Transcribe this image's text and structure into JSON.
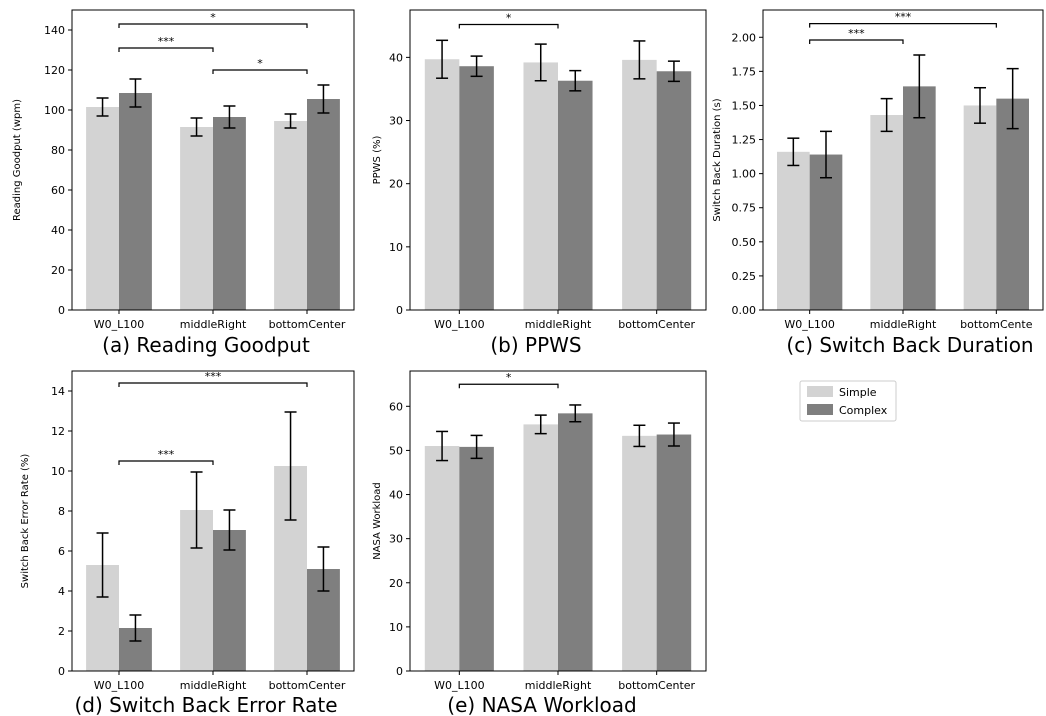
{
  "legend": {
    "items": [
      {
        "label": "Simple",
        "color": "#d3d3d3"
      },
      {
        "label": "Complex",
        "color": "#7f7f7f"
      }
    ]
  },
  "chart_data": [
    {
      "type": "bar",
      "caption": "(a) Reading Goodput",
      "ylabel": "Reading Goodput (wpm)",
      "categories": [
        "W0_L100",
        "middleRight",
        "bottomCenter"
      ],
      "ylim": [
        0,
        150
      ],
      "yticks": [
        0,
        20,
        40,
        60,
        80,
        100,
        120,
        140
      ],
      "series": [
        {
          "name": "Simple",
          "values": [
            101.5,
            91.5,
            94.5
          ],
          "err": [
            4.5,
            4.5,
            3.5
          ]
        },
        {
          "name": "Complex",
          "values": [
            108.5,
            96.5,
            105.5
          ],
          "err": [
            7.0,
            5.5,
            7.0
          ]
        }
      ],
      "significance": [
        {
          "from": 0,
          "to": 1,
          "label": "***",
          "y": 131
        },
        {
          "from": 1,
          "to": 2,
          "label": "*",
          "y": 120
        },
        {
          "from": 0,
          "to": 2,
          "label": "*",
          "y": 143
        }
      ]
    },
    {
      "type": "bar",
      "caption": "(b) PPWS",
      "ylabel": "PPWS (%)",
      "categories": [
        "W0_L100",
        "middleRight",
        "bottomCenter"
      ],
      "ylim": [
        0,
        47.5
      ],
      "yticks": [
        0,
        10,
        20,
        30,
        40
      ],
      "series": [
        {
          "name": "Simple",
          "values": [
            39.7,
            39.2,
            39.6
          ],
          "err": [
            3.0,
            2.9,
            3.0
          ]
        },
        {
          "name": "Complex",
          "values": [
            38.6,
            36.3,
            37.8
          ],
          "err": [
            1.6,
            1.6,
            1.6
          ]
        }
      ],
      "significance": [
        {
          "from": 0,
          "to": 1,
          "label": "*",
          "y": 45.2
        }
      ]
    },
    {
      "type": "bar",
      "caption": "(c) Switch Back Duration",
      "ylabel": "Switch Back Duration (s)",
      "categories": [
        "W0_L100",
        "middleRight",
        "bottomCente"
      ],
      "ylim": [
        0,
        2.2
      ],
      "yticks": [
        "0.00",
        "0.25",
        "0.50",
        "0.75",
        "1.00",
        "1.25",
        "1.50",
        "1.75",
        "2.00"
      ],
      "series": [
        {
          "name": "Simple",
          "values": [
            1.16,
            1.43,
            1.5
          ],
          "err": [
            0.1,
            0.12,
            0.13
          ]
        },
        {
          "name": "Complex",
          "values": [
            1.14,
            1.64,
            1.55
          ],
          "err": [
            0.17,
            0.23,
            0.22
          ]
        }
      ],
      "significance": [
        {
          "from": 0,
          "to": 1,
          "label": "***",
          "y": 1.98
        },
        {
          "from": 0,
          "to": 2,
          "label": "***",
          "y": 2.1
        }
      ]
    },
    {
      "type": "bar",
      "caption": "(d) Switch Back Error Rate",
      "ylabel": "Switch Back Error Rate (%)",
      "categories": [
        "W0_L100",
        "middleRight",
        "bottomCenter"
      ],
      "ylim": [
        0,
        15
      ],
      "yticks": [
        0,
        2,
        4,
        6,
        8,
        10,
        12,
        14
      ],
      "series": [
        {
          "name": "Simple",
          "values": [
            5.3,
            8.05,
            10.25
          ],
          "err": [
            1.6,
            1.9,
            2.7
          ]
        },
        {
          "name": "Complex",
          "values": [
            2.15,
            7.05,
            5.1
          ],
          "err": [
            0.65,
            1.0,
            1.1
          ]
        }
      ],
      "significance": [
        {
          "from": 0,
          "to": 1,
          "label": "***",
          "y": 10.5
        },
        {
          "from": 0,
          "to": 2,
          "label": "***",
          "y": 14.4
        }
      ]
    },
    {
      "type": "bar",
      "caption": "(e) NASA Workload",
      "ylabel": "NASA Workload",
      "categories": [
        "W0_L100",
        "middleRight",
        "bottomCenter"
      ],
      "ylim": [
        0,
        68
      ],
      "yticks": [
        0,
        10,
        20,
        30,
        40,
        50,
        60
      ],
      "series": [
        {
          "name": "Simple",
          "values": [
            51.0,
            55.9,
            53.3
          ],
          "err": [
            3.3,
            2.1,
            2.4
          ]
        },
        {
          "name": "Complex",
          "values": [
            50.8,
            58.4,
            53.6
          ],
          "err": [
            2.6,
            1.9,
            2.6
          ]
        }
      ],
      "significance": [
        {
          "from": 0,
          "to": 1,
          "label": "*",
          "y": 65
        }
      ]
    }
  ]
}
